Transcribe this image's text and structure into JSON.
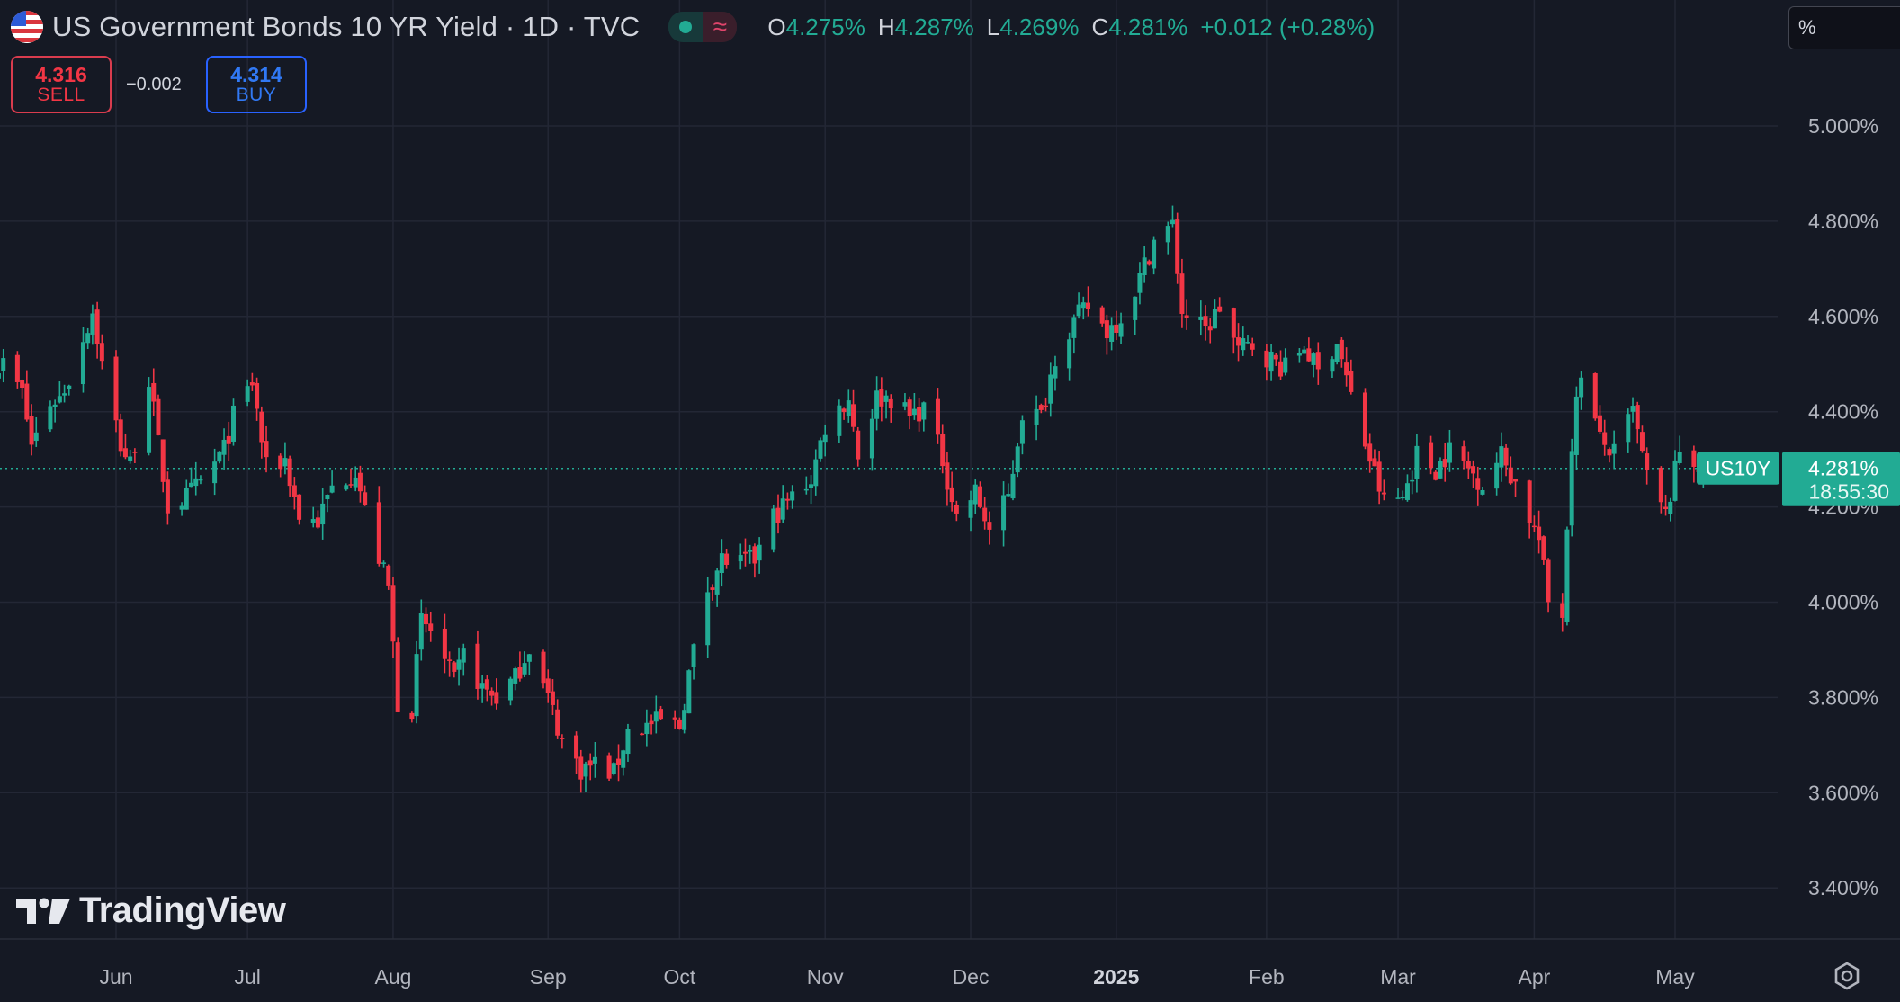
{
  "header": {
    "title": "US Government Bonds 10 YR Yield · 1D · TVC",
    "flag_icon": "us-flag-icon",
    "ohlc": {
      "o_label": "O",
      "o_value": "4.275%",
      "h_label": "H",
      "h_value": "4.287%",
      "l_label": "L",
      "l_value": "4.269%",
      "c_label": "C",
      "c_value": "4.281%",
      "change": "+0.012 (+0.28%)"
    }
  },
  "trade": {
    "sell_price": "4.316",
    "sell_label": "SELL",
    "spread": "−0.002",
    "buy_price": "4.314",
    "buy_label": "BUY"
  },
  "unit_selector": "%",
  "price_tag": {
    "symbol": "US10Y",
    "value": "4.281%",
    "countdown": "18:55:30"
  },
  "branding": "TradingView",
  "colors": {
    "background": "#151924",
    "up": "#22ab94",
    "down": "#f23645",
    "grid": "#232735",
    "axis_text": "#b2b5be"
  },
  "chart_data": {
    "type": "candlestick",
    "title": "US Government Bonds 10 YR Yield",
    "interval": "1D",
    "source": "TVC",
    "ylim": [
      3.2,
      5.1
    ],
    "y_ticks": [
      "5.000%",
      "4.800%",
      "4.600%",
      "4.400%",
      "4.200%",
      "4.000%",
      "3.800%",
      "3.600%",
      "3.400%"
    ],
    "y_tick_values": [
      5.0,
      4.8,
      4.6,
      4.4,
      4.2,
      4.0,
      3.8,
      3.6,
      3.4
    ],
    "x_labels": [
      "Jun",
      "Jul",
      "Aug",
      "Sep",
      "Oct",
      "Nov",
      "Dec",
      "2025",
      "Feb",
      "Mar",
      "Apr",
      "May"
    ],
    "x_label_dates": [
      "2024-06-03",
      "2024-07-01",
      "2024-08-01",
      "2024-09-03",
      "2024-10-01",
      "2024-11-01",
      "2024-12-02",
      "2025-01-02",
      "2025-02-03",
      "2025-03-03",
      "2025-04-01",
      "2025-05-01"
    ],
    "x_range": [
      "2024-05-08",
      "2025-05-20"
    ],
    "last_close": 4.281,
    "grid": true,
    "closes": [
      [
        "2024-05-08",
        4.49
      ],
      [
        "2024-05-10",
        4.5
      ],
      [
        "2024-05-14",
        4.44
      ],
      [
        "2024-05-16",
        4.33
      ],
      [
        "2024-05-20",
        4.42
      ],
      [
        "2024-05-22",
        4.43
      ],
      [
        "2024-05-24",
        4.47
      ],
      [
        "2024-05-29",
        4.61
      ],
      [
        "2024-05-31",
        4.5
      ],
      [
        "2024-06-04",
        4.33
      ],
      [
        "2024-06-06",
        4.29
      ],
      [
        "2024-06-10",
        4.47
      ],
      [
        "2024-06-12",
        4.33
      ],
      [
        "2024-06-14",
        4.2
      ],
      [
        "2024-06-18",
        4.22
      ],
      [
        "2024-06-21",
        4.25
      ],
      [
        "2024-06-26",
        4.32
      ],
      [
        "2024-06-28",
        4.39
      ],
      [
        "2024-07-02",
        4.46
      ],
      [
        "2024-07-05",
        4.28
      ],
      [
        "2024-07-09",
        4.3
      ],
      [
        "2024-07-12",
        4.18
      ],
      [
        "2024-07-16",
        4.17
      ],
      [
        "2024-07-19",
        4.24
      ],
      [
        "2024-07-24",
        4.28
      ],
      [
        "2024-07-26",
        4.19
      ],
      [
        "2024-07-31",
        4.03
      ],
      [
        "2024-08-02",
        3.79
      ],
      [
        "2024-08-05",
        3.78
      ],
      [
        "2024-08-07",
        3.96
      ],
      [
        "2024-08-09",
        3.94
      ],
      [
        "2024-08-14",
        3.83
      ],
      [
        "2024-08-16",
        3.89
      ],
      [
        "2024-08-20",
        3.82
      ],
      [
        "2024-08-23",
        3.8
      ],
      [
        "2024-08-27",
        3.84
      ],
      [
        "2024-08-30",
        3.91
      ],
      [
        "2024-09-04",
        3.77
      ],
      [
        "2024-09-06",
        3.71
      ],
      [
        "2024-09-10",
        3.65
      ],
      [
        "2024-09-13",
        3.66
      ],
      [
        "2024-09-17",
        3.64
      ],
      [
        "2024-09-20",
        3.73
      ],
      [
        "2024-09-24",
        3.74
      ],
      [
        "2024-09-27",
        3.75
      ],
      [
        "2024-10-01",
        3.74
      ],
      [
        "2024-10-03",
        3.85
      ],
      [
        "2024-10-07",
        4.03
      ],
      [
        "2024-10-10",
        4.09
      ],
      [
        "2024-10-14",
        4.08
      ],
      [
        "2024-10-17",
        4.09
      ],
      [
        "2024-10-21",
        4.18
      ],
      [
        "2024-10-24",
        4.21
      ],
      [
        "2024-10-29",
        4.26
      ],
      [
        "2024-11-01",
        4.37
      ],
      [
        "2024-11-06",
        4.43
      ],
      [
        "2024-11-08",
        4.31
      ],
      [
        "2024-11-12",
        4.43
      ],
      [
        "2024-11-15",
        4.43
      ],
      [
        "2024-11-19",
        4.39
      ],
      [
        "2024-11-22",
        4.41
      ],
      [
        "2024-11-26",
        4.3
      ],
      [
        "2024-11-29",
        4.18
      ],
      [
        "2024-12-03",
        4.23
      ],
      [
        "2024-12-06",
        4.15
      ],
      [
        "2024-12-10",
        4.22
      ],
      [
        "2024-12-13",
        4.4
      ],
      [
        "2024-12-17",
        4.39
      ],
      [
        "2024-12-20",
        4.52
      ],
      [
        "2024-12-24",
        4.59
      ],
      [
        "2024-12-27",
        4.62
      ],
      [
        "2024-12-31",
        4.57
      ],
      [
        "2025-01-03",
        4.6
      ],
      [
        "2025-01-07",
        4.68
      ],
      [
        "2025-01-10",
        4.76
      ],
      [
        "2025-01-14",
        4.79
      ],
      [
        "2025-01-16",
        4.61
      ],
      [
        "2025-01-21",
        4.57
      ],
      [
        "2025-01-24",
        4.62
      ],
      [
        "2025-01-28",
        4.53
      ],
      [
        "2025-01-31",
        4.54
      ],
      [
        "2025-02-04",
        4.51
      ],
      [
        "2025-02-07",
        4.49
      ],
      [
        "2025-02-11",
        4.54
      ],
      [
        "2025-02-14",
        4.48
      ],
      [
        "2025-02-18",
        4.55
      ],
      [
        "2025-02-21",
        4.43
      ],
      [
        "2025-02-25",
        4.3
      ],
      [
        "2025-02-28",
        4.21
      ],
      [
        "2025-03-04",
        4.22
      ],
      [
        "2025-03-07",
        4.31
      ],
      [
        "2025-03-11",
        4.28
      ],
      [
        "2025-03-14",
        4.32
      ],
      [
        "2025-03-18",
        4.28
      ],
      [
        "2025-03-21",
        4.25
      ],
      [
        "2025-03-25",
        4.31
      ],
      [
        "2025-03-28",
        4.25
      ],
      [
        "2025-04-02",
        4.13
      ],
      [
        "2025-04-04",
        4.0
      ],
      [
        "2025-04-07",
        3.98
      ],
      [
        "2025-04-09",
        4.34
      ],
      [
        "2025-04-11",
        4.49
      ],
      [
        "2025-04-15",
        4.34
      ],
      [
        "2025-04-18",
        4.31
      ],
      [
        "2025-04-22",
        4.4
      ],
      [
        "2025-04-25",
        4.26
      ],
      [
        "2025-04-29",
        4.18
      ],
      [
        "2025-05-02",
        4.32
      ],
      [
        "2025-05-06",
        4.29
      ],
      [
        "2025-05-08",
        4.281
      ]
    ]
  }
}
